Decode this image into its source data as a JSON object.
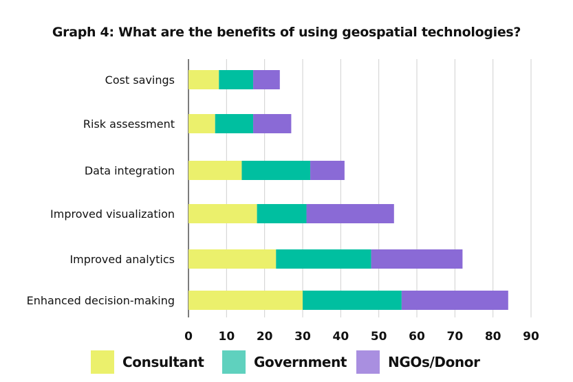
{
  "chart_data": {
    "type": "bar",
    "orientation": "horizontal",
    "stacked": true,
    "title": "Graph 4: What are the benefits of using geospatial technologies?",
    "categories": [
      "Cost savings",
      "Risk assessment",
      "Data integration",
      "Improved visualization",
      "Improved analytics",
      "Enhanced decision-making"
    ],
    "series": [
      {
        "name": "Consultant",
        "color": "#EBF06C",
        "values": [
          8,
          7,
          14,
          18,
          23,
          30
        ]
      },
      {
        "name": "Government",
        "color": "#00BFA0",
        "values": [
          9,
          10,
          18,
          13,
          25,
          26
        ]
      },
      {
        "name": "NGOs/Donor",
        "color": "#8A6AD6",
        "values": [
          7,
          10,
          9,
          23,
          24,
          28
        ]
      }
    ],
    "xlim": [
      0,
      90
    ],
    "xticks": [
      "0",
      "10",
      "20",
      "30",
      "40",
      "50",
      "60",
      "70",
      "80",
      "90"
    ],
    "grid": "vertical",
    "legend_position": "bottom",
    "legend_swatch_colors": [
      "#EBF06C",
      "#5FD1BE",
      "#A98FE0"
    ]
  }
}
